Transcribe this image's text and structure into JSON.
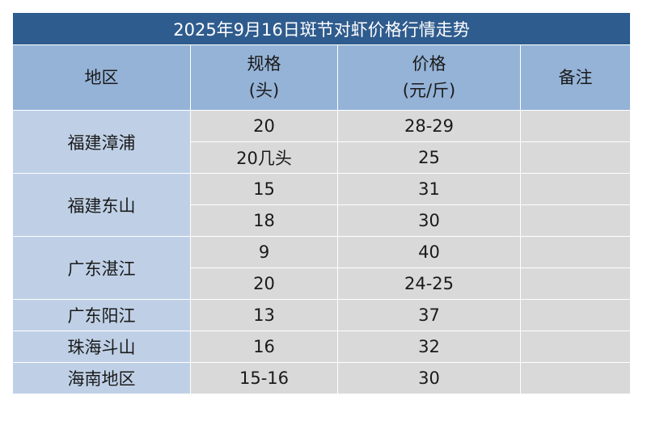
{
  "title": "2025年9月16日斑节对虾价格行情走势",
  "headers": {
    "region": "地区",
    "spec_line1": "规格",
    "spec_line2": "(头)",
    "price_line1": "价格",
    "price_line2": "(元/斤)",
    "note": "备注"
  },
  "rows": [
    {
      "region": "福建漳浦",
      "items": [
        {
          "spec": "20",
          "price": "28-29"
        },
        {
          "spec": "20几头",
          "price": "25"
        }
      ]
    },
    {
      "region": "福建东山",
      "items": [
        {
          "spec": "15",
          "price": "31"
        },
        {
          "spec": "18",
          "price": "30"
        }
      ]
    },
    {
      "region": "广东湛江",
      "items": [
        {
          "spec": "9",
          "price": "40"
        },
        {
          "spec": "20",
          "price": "24-25"
        }
      ]
    },
    {
      "region": "广东阳江",
      "items": [
        {
          "spec": "13",
          "price": "37"
        }
      ]
    },
    {
      "region": "珠海斗山",
      "items": [
        {
          "spec": "16",
          "price": "32"
        }
      ]
    },
    {
      "region": "海南地区",
      "items": [
        {
          "spec": "15-16",
          "price": "30"
        }
      ]
    }
  ]
}
